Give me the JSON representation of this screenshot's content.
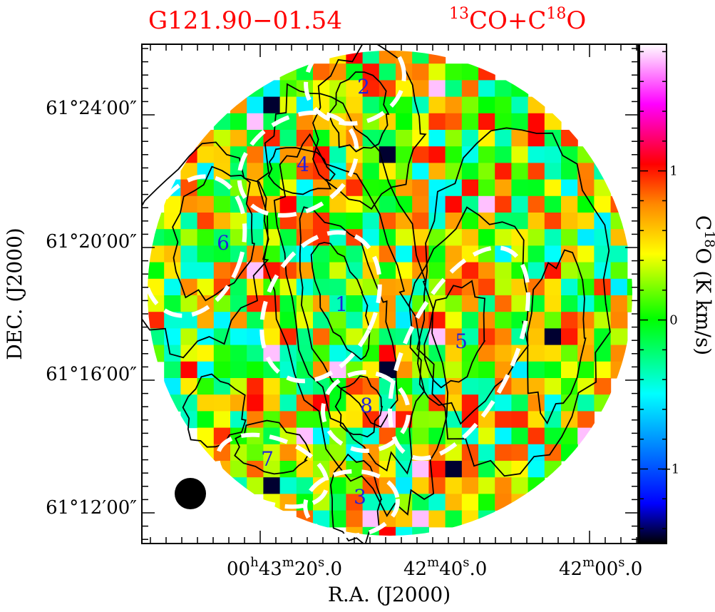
{
  "header": {
    "source_name": "G121.90−01.54",
    "tracer_13": "13",
    "tracer_co": "CO+C",
    "tracer_18": "18",
    "tracer_o": "O"
  },
  "axes": {
    "ylabel": "DEC.  (J2000)",
    "xlabel": "R.A.  (J2000)",
    "dec_ticks": [
      "61°24′00″",
      "61°20′00″",
      "61°16′00″",
      "61°12′00″"
    ],
    "ra_ticks": [
      {
        "pre": "00",
        "h": "h",
        "mid1": "43",
        "m": "m",
        "mid2": "20",
        "s": "s",
        "post": ".0"
      },
      {
        "pre": "42",
        "h": "",
        "mid1": "",
        "m": "m",
        "mid2": "40",
        "s": "s",
        "post": ".0"
      },
      {
        "pre": "42",
        "h": "",
        "mid1": "",
        "m": "m",
        "mid2": "00",
        "s": "s",
        "post": ".0"
      }
    ]
  },
  "colorbar": {
    "label_c": "C",
    "label_18": "18",
    "label_unit": "O  (K km/s)",
    "ticks": [
      "1",
      "0",
      "−1"
    ],
    "tick_values": [
      1,
      0,
      -1
    ],
    "range": [
      -1.5,
      1.85
    ]
  },
  "regions": [
    "1",
    "2",
    "3",
    "4",
    "5",
    "6",
    "7",
    "8"
  ],
  "chart_data": {
    "type": "heatmap",
    "title": "G121.90−01.54   13CO+C18O",
    "xlabel": "R.A.  (J2000)",
    "ylabel": "DEC.  (J2000)",
    "x_ticks": [
      "00h43m20.0s",
      "42m40.0s",
      "42m00.0s"
    ],
    "y_ticks": [
      "61°24′00″",
      "61°20′00″",
      "61°16′00″",
      "61°12′00″"
    ],
    "colorbar_label": "C18O (K km/s)",
    "colorbar_range": [
      -1.5,
      1.85
    ],
    "colorbar_ticks": [
      -1,
      0,
      1
    ],
    "colormap": [
      "#000000",
      "#0000ff",
      "#00ffff",
      "#00ff00",
      "#ffff00",
      "#ff8800",
      "#ff0000",
      "#ff00ff",
      "#ffffff"
    ],
    "contours": "13CO integrated intensity (black)",
    "outlines": "white dashed ellipses labeled 1-8",
    "beam": "filled black circle, lower left",
    "region_labels": [
      "1",
      "2",
      "3",
      "4",
      "5",
      "6",
      "7",
      "8"
    ],
    "grid_size": [
      30,
      30
    ]
  }
}
